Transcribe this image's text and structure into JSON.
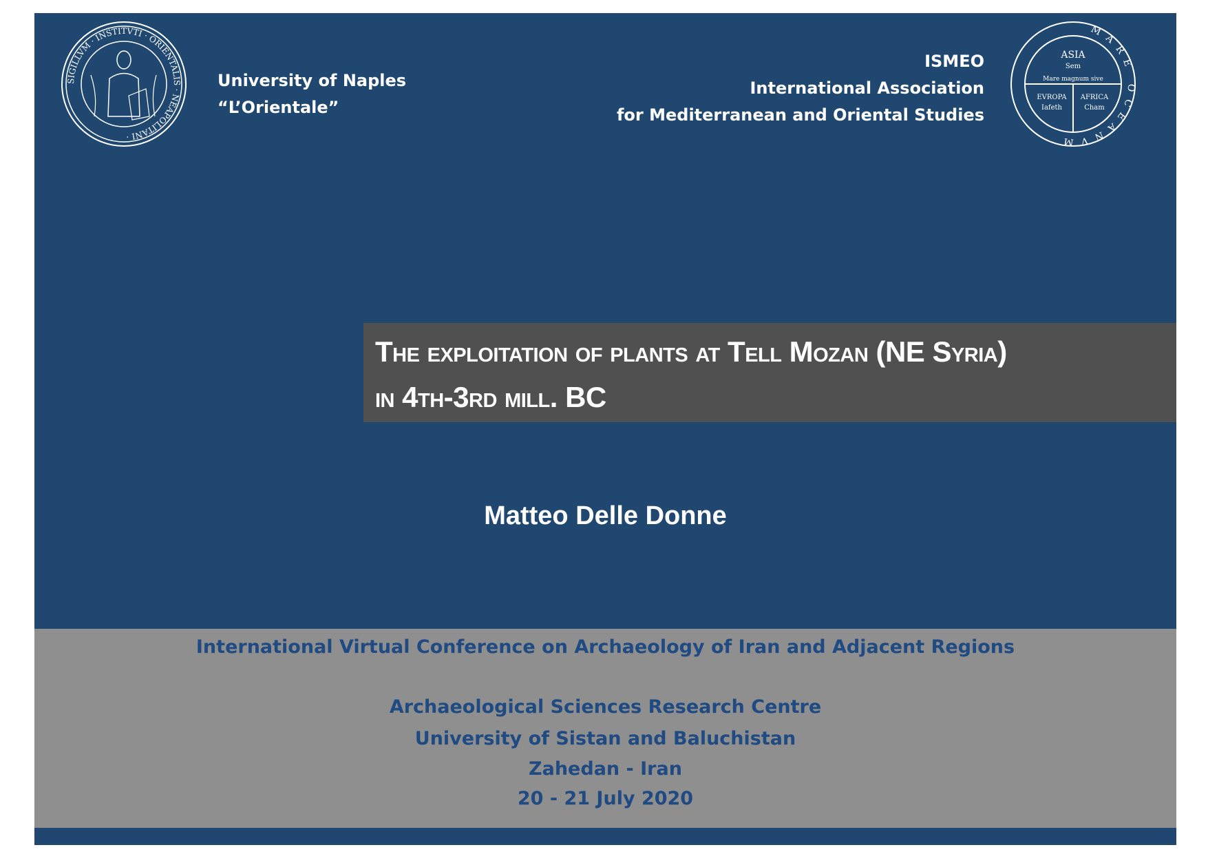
{
  "left_institution": {
    "line1": "University of Naples",
    "line2": "“L’Orientale”",
    "seal_text": "SIGILLVM INSTITVTI ORIENTALIS NEAPOLITANI"
  },
  "right_institution": {
    "line1": "ISMEO",
    "line2": "International Association",
    "line3": "for Mediterranean and Oriental Studies",
    "seal_text": "MARE OCEANVM ASIA Sem Mare magnum sive EVROPA Iafeth AFRICA Cham"
  },
  "title": {
    "line1": "The exploitation of plants at Tell Mozan (NE Syria)",
    "line2": "in 4th-3rd mill. BC"
  },
  "author": "Matteo Delle Donne",
  "conference": {
    "name": "International Virtual Conference on Archaeology of Iran and Adjacent Regions",
    "organizer": "Archaeological Sciences Research Centre",
    "university": "University of Sistan and Baluchistan",
    "location": "Zahedan - Iran",
    "dates": "20 - 21 July 2020"
  },
  "colors": {
    "background": "#1f4770",
    "title_box": "#505050",
    "band": "#8f8f8f",
    "conference_text": "#1f4a82"
  }
}
